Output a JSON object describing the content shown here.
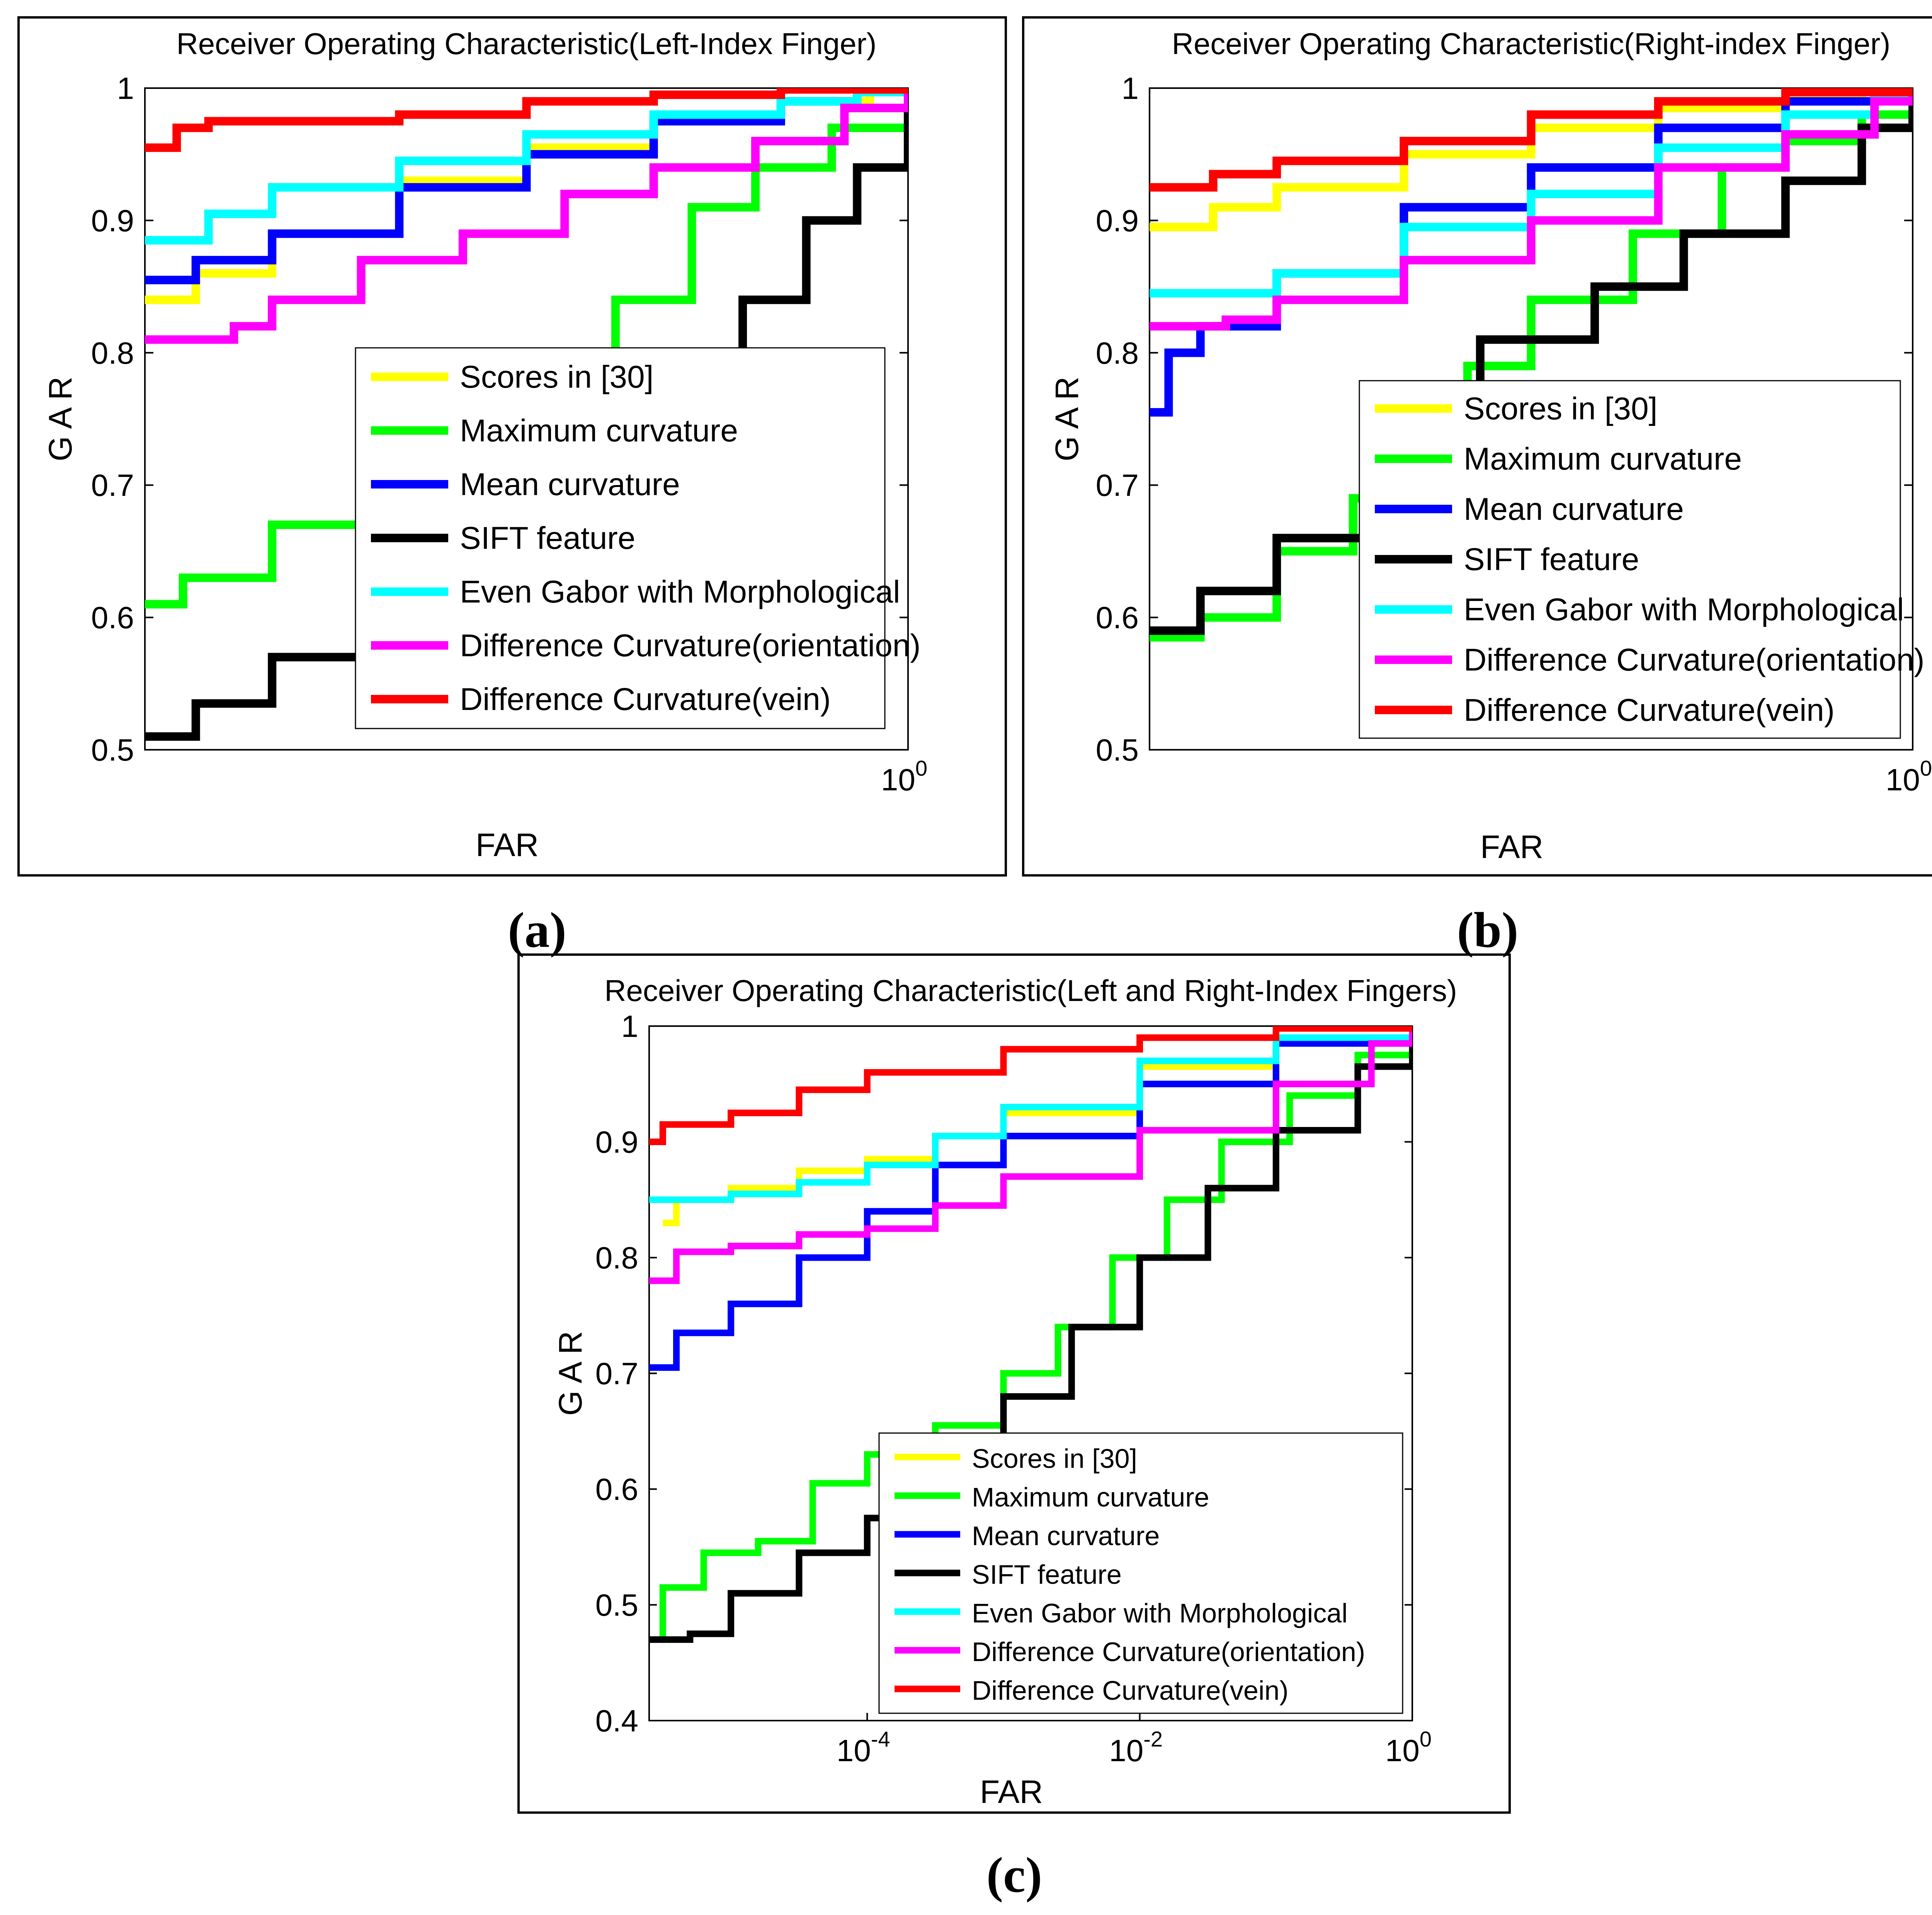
{
  "colors": {
    "scores30": "#FFFF00",
    "maxcurv": "#00FF00",
    "meancurv": "#0000FF",
    "sift": "#000000",
    "gabor": "#00FFFF",
    "dc_orient": "#FF00FF",
    "dc_vein": "#FF0000"
  },
  "panel_labels": [
    "(a)",
    "(b)",
    "(c)"
  ],
  "chart_data": [
    {
      "type": "line",
      "title": "Receiver Operating Characteristic(Left-Index Finger)",
      "xlabel": "FAR",
      "ylabel": "GAR",
      "xscale": "log",
      "xlim_log10": [
        -6,
        0
      ],
      "ylim": [
        0.5,
        1
      ],
      "yticks": [
        "0.5",
        "0.6",
        "0.7",
        "0.8",
        "0.9",
        "1"
      ],
      "xtick_base": "10",
      "xtick_exp": "0",
      "legend_position": "lower-right",
      "series": [
        {
          "key": "scores30",
          "name": "Scores in [30]",
          "log10_far": [
            -6,
            -5.6,
            -5,
            -4,
            -3,
            -2,
            -1,
            -0.3,
            0
          ],
          "gar": [
            0.84,
            0.86,
            0.89,
            0.93,
            0.955,
            0.975,
            0.99,
            0.998,
            1
          ]
        },
        {
          "key": "maxcurv",
          "name": "Maximum curvature",
          "log10_far": [
            -6,
            -5.7,
            -5,
            -4,
            -3,
            -2.3,
            -1.7,
            -1.2,
            -0.6,
            0
          ],
          "gar": [
            0.61,
            0.63,
            0.67,
            0.72,
            0.78,
            0.84,
            0.91,
            0.94,
            0.97,
            1
          ]
        },
        {
          "key": "meancurv",
          "name": "Mean curvature",
          "log10_far": [
            -6,
            -5.6,
            -5,
            -4,
            -3,
            -2,
            -1,
            -0.4,
            0
          ],
          "gar": [
            0.855,
            0.87,
            0.89,
            0.925,
            0.95,
            0.975,
            0.99,
            0.998,
            1
          ]
        },
        {
          "key": "sift",
          "name": "SIFT feature",
          "log10_far": [
            -6,
            -5.6,
            -5,
            -4,
            -3,
            -2,
            -1.3,
            -0.8,
            -0.4,
            0
          ],
          "gar": [
            0.51,
            0.535,
            0.57,
            0.62,
            0.7,
            0.79,
            0.84,
            0.9,
            0.94,
            1
          ]
        },
        {
          "key": "gabor",
          "name": "Even Gabor with Morphological",
          "log10_far": [
            -6,
            -5.5,
            -5,
            -4,
            -3,
            -2,
            -1,
            -0.4,
            0
          ],
          "gar": [
            0.885,
            0.905,
            0.925,
            0.945,
            0.965,
            0.98,
            0.99,
            0.997,
            1
          ]
        },
        {
          "key": "dc_orient",
          "name": "Difference Curvature(orientation)",
          "log10_far": [
            -6,
            -5.3,
            -5,
            -4.3,
            -3.5,
            -2.7,
            -2,
            -1.2,
            -0.5,
            0
          ],
          "gar": [
            0.81,
            0.82,
            0.84,
            0.87,
            0.89,
            0.92,
            0.94,
            0.96,
            0.985,
            1
          ]
        },
        {
          "key": "dc_vein",
          "name": "Difference Curvature(vein)",
          "log10_far": [
            -6,
            -5.75,
            -5.5,
            -4,
            -3,
            -2,
            -1,
            0
          ],
          "gar": [
            0.955,
            0.97,
            0.975,
            0.98,
            0.99,
            0.995,
            0.999,
            1
          ]
        }
      ]
    },
    {
      "type": "line",
      "title": "Receiver Operating Characteristic(Right-index Finger)",
      "xlabel": "FAR",
      "ylabel": "GAR",
      "xscale": "log",
      "xlim_log10": [
        -6,
        0
      ],
      "ylim": [
        0.5,
        1
      ],
      "yticks": [
        "0.5",
        "0.6",
        "0.7",
        "0.8",
        "0.9",
        "1"
      ],
      "xtick_base": "10",
      "xtick_exp": "0",
      "legend_position": "lower-right",
      "series": [
        {
          "key": "scores30",
          "name": "Scores in [30]",
          "log10_far": [
            -6,
            -5.5,
            -5,
            -4,
            -3,
            -2,
            -1,
            -0.4,
            0
          ],
          "gar": [
            0.895,
            0.91,
            0.925,
            0.95,
            0.97,
            0.985,
            0.995,
            0.999,
            1
          ]
        },
        {
          "key": "maxcurv",
          "name": "Maximum curvature",
          "log10_far": [
            -6,
            -5.6,
            -5,
            -4.4,
            -4,
            -3.5,
            -3,
            -2.2,
            -1.5,
            -1,
            -0.4,
            0
          ],
          "gar": [
            0.585,
            0.6,
            0.65,
            0.69,
            0.73,
            0.79,
            0.84,
            0.89,
            0.94,
            0.96,
            0.98,
            1
          ]
        },
        {
          "key": "meancurv",
          "name": "Mean curvature",
          "log10_far": [
            -6,
            -5.85,
            -5.6,
            -5,
            -4,
            -3,
            -2,
            -1,
            -0.3,
            0
          ],
          "gar": [
            0.755,
            0.8,
            0.82,
            0.86,
            0.91,
            0.94,
            0.97,
            0.99,
            0.998,
            1
          ]
        },
        {
          "key": "sift",
          "name": "SIFT feature",
          "log10_far": [
            -6,
            -5.6,
            -5,
            -4.3,
            -4,
            -3.4,
            -2.5,
            -1.8,
            -1,
            -0.4,
            0
          ],
          "gar": [
            0.59,
            0.62,
            0.66,
            0.71,
            0.76,
            0.81,
            0.85,
            0.89,
            0.93,
            0.97,
            1
          ]
        },
        {
          "key": "gabor",
          "name": "Even Gabor with Morphological",
          "log10_far": [
            -6,
            -5,
            -4,
            -3,
            -2,
            -1,
            -0.3,
            0
          ],
          "gar": [
            0.845,
            0.86,
            0.895,
            0.92,
            0.955,
            0.98,
            0.995,
            1
          ]
        },
        {
          "key": "dc_orient",
          "name": "Difference Curvature(orientation)",
          "log10_far": [
            -6,
            -5.4,
            -5,
            -4,
            -3,
            -2,
            -1,
            -0.3,
            0
          ],
          "gar": [
            0.82,
            0.825,
            0.84,
            0.87,
            0.9,
            0.94,
            0.965,
            0.99,
            1
          ]
        },
        {
          "key": "dc_vein",
          "name": "Difference Curvature(vein)",
          "log10_far": [
            -6,
            -5.5,
            -5,
            -4,
            -3,
            -2,
            -1,
            0
          ],
          "gar": [
            0.925,
            0.935,
            0.945,
            0.96,
            0.98,
            0.99,
            0.997,
            1
          ]
        }
      ]
    },
    {
      "type": "line",
      "title": "Receiver Operating Characteristic(Left and Right-Index Fingers)",
      "xlabel": "FAR",
      "ylabel": "GAR",
      "xscale": "log",
      "xlim_log10": [
        -5.6,
        0
      ],
      "ylim": [
        0.4,
        1
      ],
      "yticks": [
        "0.4",
        "0.5",
        "0.6",
        "0.7",
        "0.8",
        "0.9",
        "1"
      ],
      "xticks": [
        {
          "base": "10",
          "exp": "-4",
          "log10": -4
        },
        {
          "base": "10",
          "exp": "-2",
          "log10": -2
        },
        {
          "base": "10",
          "exp": "0",
          "log10": 0
        }
      ],
      "legend_position": "lower-right",
      "series": [
        {
          "key": "scores30",
          "name": "Scores in [30]",
          "log10_far": [
            -5.5,
            -5.4,
            -5,
            -4.5,
            -4,
            -3.5,
            -3,
            -2,
            -1,
            0
          ],
          "gar": [
            0.83,
            0.85,
            0.86,
            0.875,
            0.885,
            0.905,
            0.925,
            0.965,
            0.99,
            1
          ]
        },
        {
          "key": "maxcurv",
          "name": "Maximum curvature",
          "log10_far": [
            -5.6,
            -5.5,
            -5.2,
            -4.8,
            -4.4,
            -4,
            -3.5,
            -3,
            -2.6,
            -2.2,
            -1.8,
            -1.4,
            -0.9,
            -0.4,
            0
          ],
          "gar": [
            0.47,
            0.515,
            0.545,
            0.555,
            0.605,
            0.63,
            0.655,
            0.7,
            0.74,
            0.8,
            0.85,
            0.9,
            0.94,
            0.975,
            1
          ]
        },
        {
          "key": "meancurv",
          "name": "Mean curvature",
          "log10_far": [
            -5.6,
            -5.4,
            -5,
            -4.5,
            -4,
            -3.5,
            -3,
            -2,
            -1,
            0
          ],
          "gar": [
            0.705,
            0.735,
            0.76,
            0.8,
            0.84,
            0.88,
            0.905,
            0.95,
            0.985,
            1
          ]
        },
        {
          "key": "sift",
          "name": "SIFT feature",
          "log10_far": [
            -5.6,
            -5.3,
            -5,
            -4.5,
            -4,
            -3.6,
            -3,
            -2.5,
            -2,
            -1.5,
            -1,
            -0.4,
            0
          ],
          "gar": [
            0.47,
            0.475,
            0.51,
            0.545,
            0.575,
            0.62,
            0.68,
            0.74,
            0.8,
            0.86,
            0.91,
            0.965,
            1
          ]
        },
        {
          "key": "gabor",
          "name": "Even Gabor with Morphological",
          "log10_far": [
            -5.6,
            -5,
            -4.5,
            -4,
            -3.5,
            -3,
            -2,
            -1,
            0
          ],
          "gar": [
            0.85,
            0.855,
            0.865,
            0.88,
            0.905,
            0.93,
            0.97,
            0.99,
            1
          ]
        },
        {
          "key": "dc_orient",
          "name": "Difference Curvature(orientation)",
          "log10_far": [
            -5.6,
            -5.4,
            -5,
            -4.5,
            -4,
            -3.5,
            -3,
            -2,
            -1,
            -0.3,
            0
          ],
          "gar": [
            0.78,
            0.805,
            0.81,
            0.82,
            0.825,
            0.845,
            0.87,
            0.91,
            0.95,
            0.985,
            1
          ]
        },
        {
          "key": "dc_vein",
          "name": "Difference Curvature(vein)",
          "log10_far": [
            -5.6,
            -5.5,
            -5,
            -4.5,
            -4,
            -3,
            -2,
            -1,
            0
          ],
          "gar": [
            0.9,
            0.915,
            0.925,
            0.945,
            0.96,
            0.98,
            0.99,
            0.998,
            1
          ]
        }
      ]
    }
  ]
}
